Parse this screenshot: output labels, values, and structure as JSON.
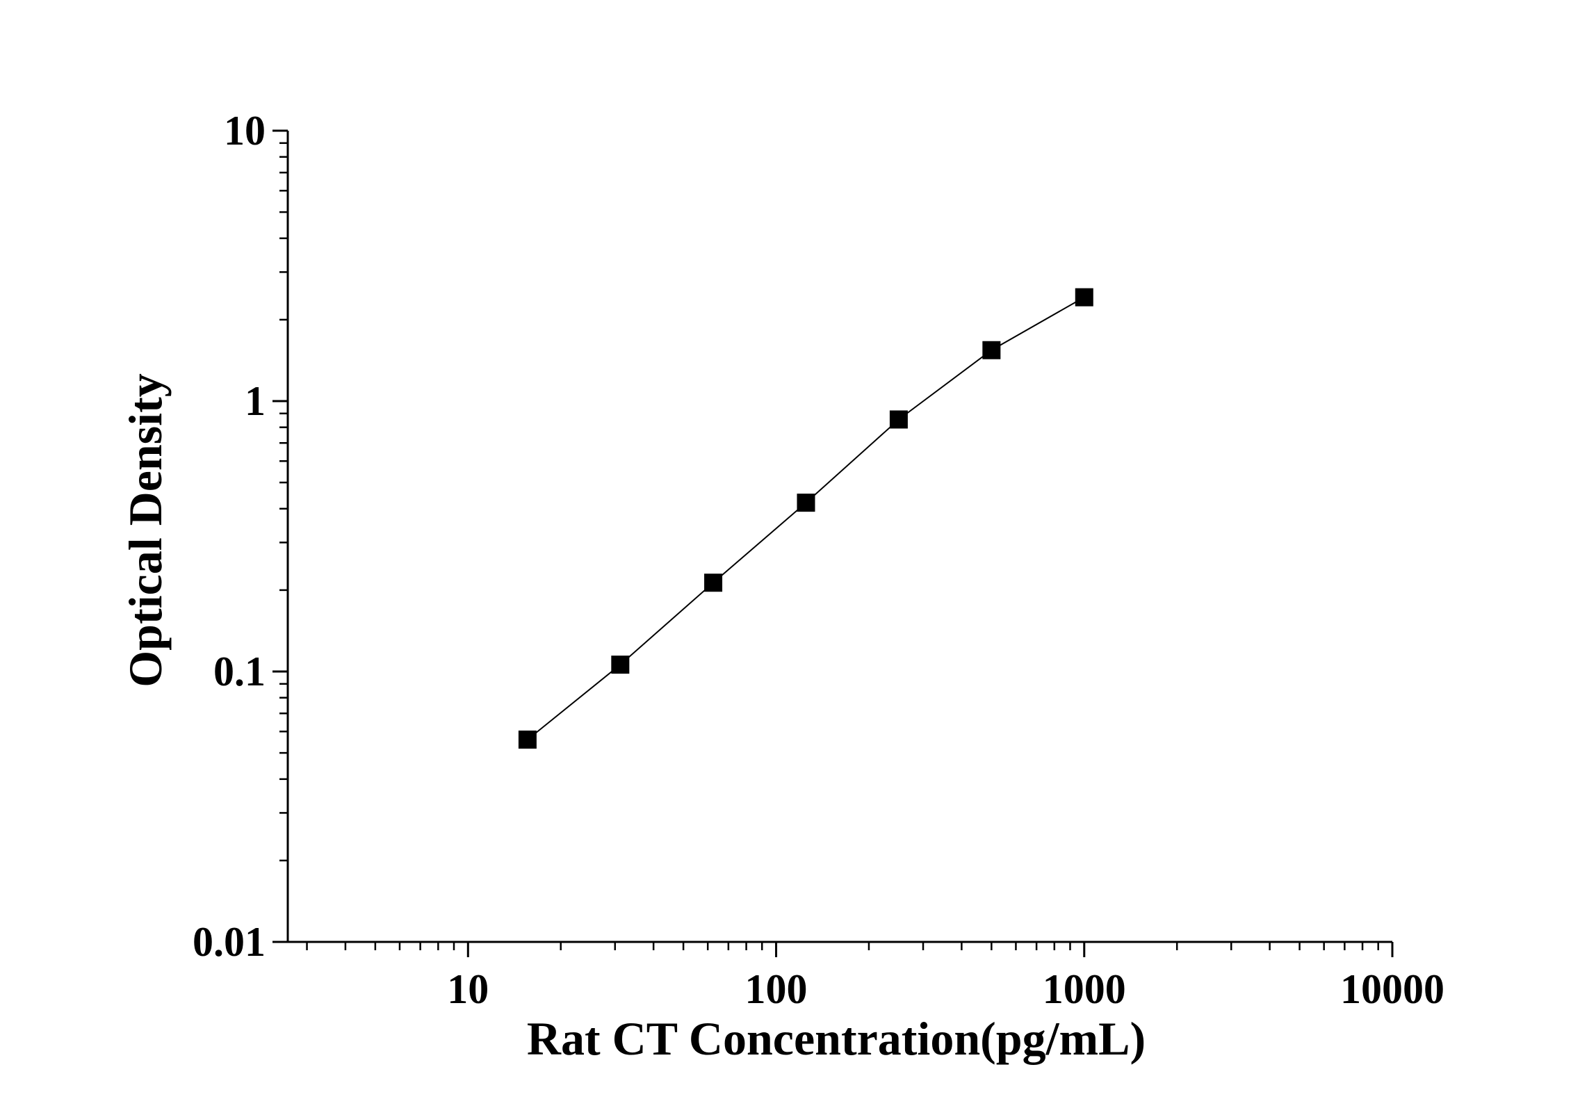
{
  "chart_data": {
    "type": "line",
    "title": "",
    "xlabel": "Rat CT Concentration(pg/mL)",
    "ylabel": "Optical Density",
    "x_scale": "log",
    "y_scale": "log",
    "xlim": [
      2.6,
      10000
    ],
    "ylim": [
      0.01,
      10
    ],
    "x_ticks": [
      10,
      100,
      1000,
      10000
    ],
    "x_tick_labels": [
      "10",
      "100",
      "1000",
      "10000"
    ],
    "y_ticks": [
      10,
      1,
      0.1,
      0.01
    ],
    "y_tick_labels": [
      "10",
      "1",
      "0.1",
      "0.01"
    ],
    "grid": false,
    "legend": "none",
    "series": [
      {
        "marker": "square",
        "color": "#000000",
        "x": [
          15.6,
          31.2,
          62.5,
          125,
          250,
          500,
          1000
        ],
        "y": [
          0.056,
          0.106,
          0.213,
          0.421,
          0.855,
          1.543,
          2.421
        ]
      }
    ]
  }
}
